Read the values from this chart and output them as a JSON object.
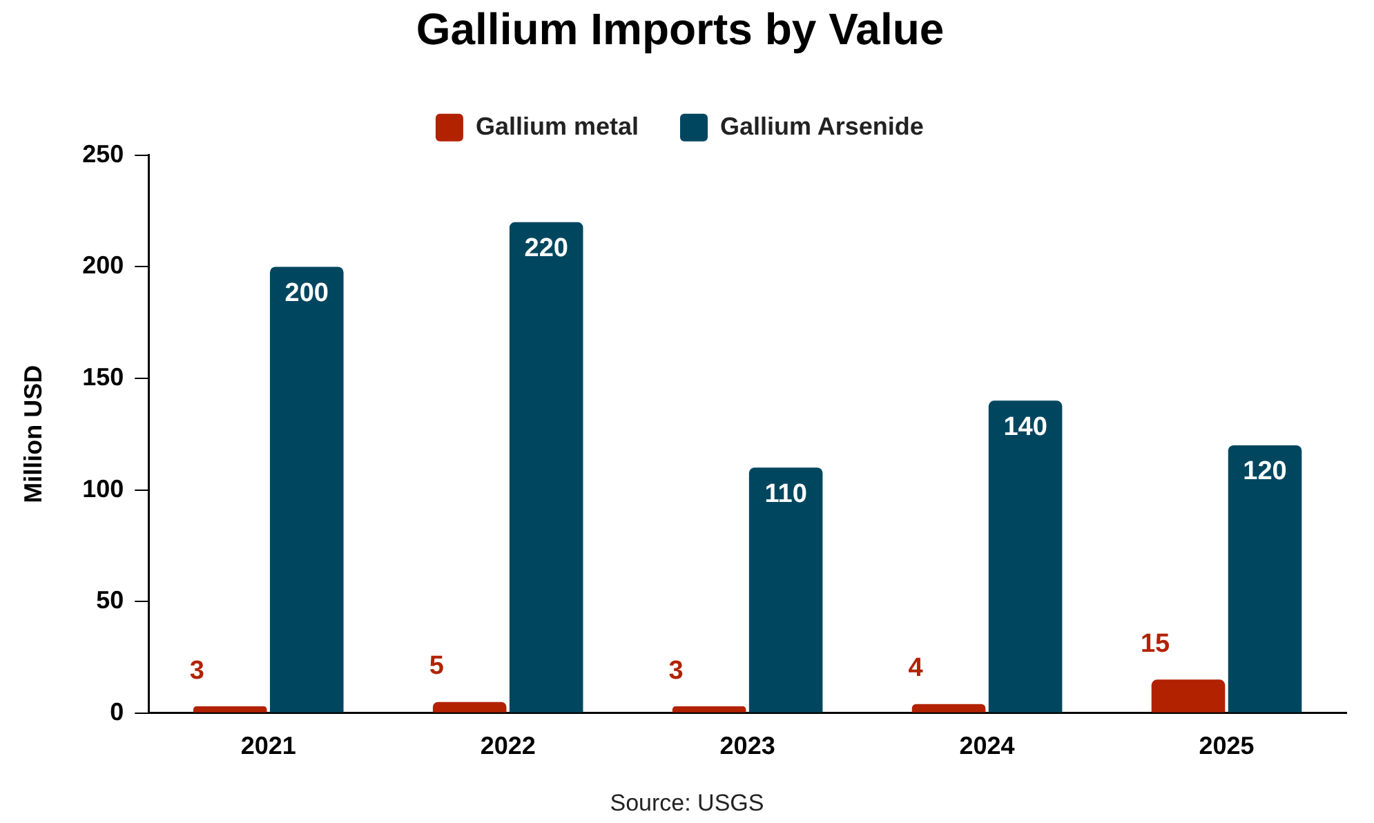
{
  "chart_data": {
    "type": "bar",
    "title": "Gallium Imports by Value",
    "ylabel": "Million USD",
    "categories": [
      "2021",
      "2022",
      "2023",
      "2024",
      "2025"
    ],
    "series": [
      {
        "name": "Gallium metal",
        "color": "#b22200",
        "values": [
          3,
          5,
          3,
          4,
          15
        ]
      },
      {
        "name": "Gallium Arsenide",
        "color": "#00465f",
        "values": [
          200,
          220,
          110,
          140,
          120
        ]
      }
    ],
    "ylim": [
      0,
      250
    ],
    "yticks": [
      0,
      50,
      100,
      150,
      200,
      250
    ],
    "grid": false,
    "legend": "top",
    "data_labels": true,
    "annotations": [
      "Source: USGS"
    ]
  }
}
